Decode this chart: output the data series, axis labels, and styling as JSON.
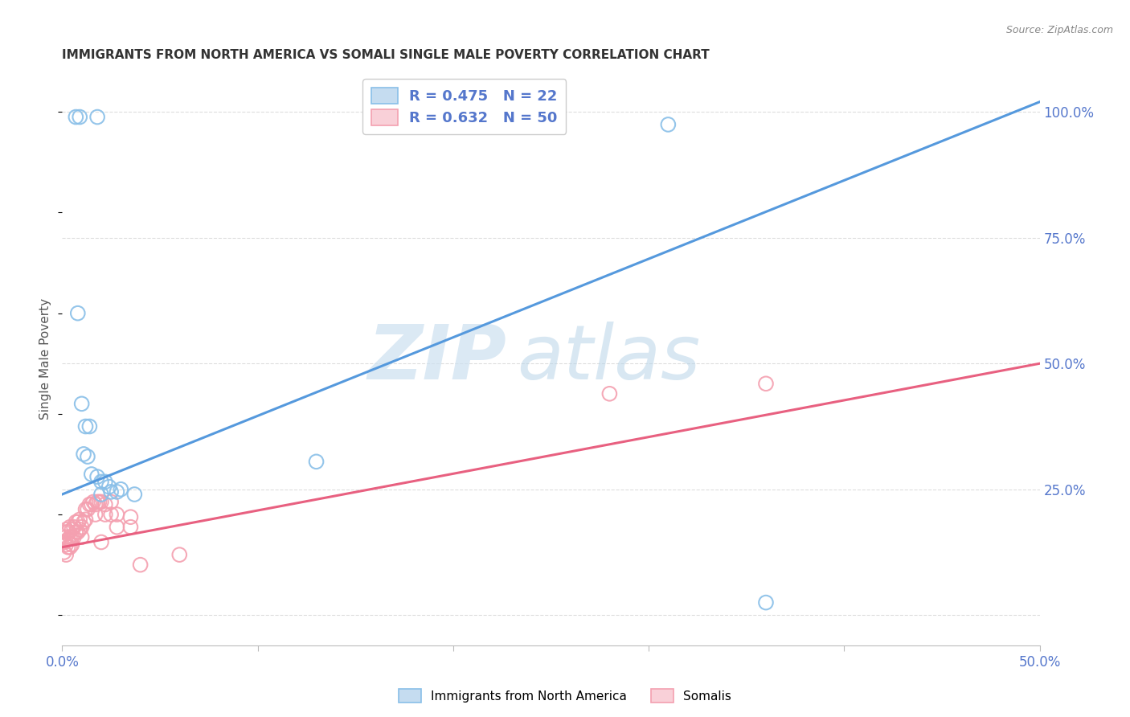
{
  "title": "IMMIGRANTS FROM NORTH AMERICA VS SOMALI SINGLE MALE POVERTY CORRELATION CHART",
  "source": "Source: ZipAtlas.com",
  "ylabel": "Single Male Poverty",
  "xmin": 0.0,
  "xmax": 0.5,
  "ymin": -0.06,
  "ymax": 1.08,
  "yticks": [
    0.0,
    0.25,
    0.5,
    0.75,
    1.0
  ],
  "ytick_labels": [
    "",
    "25.0%",
    "50.0%",
    "75.0%",
    "100.0%"
  ],
  "xtick_positions": [
    0.0,
    0.1,
    0.2,
    0.3,
    0.4,
    0.5
  ],
  "xtick_labels": [
    "0.0%",
    "",
    "",
    "",
    "",
    "50.0%"
  ],
  "blue_scatter": [
    [
      0.007,
      0.99
    ],
    [
      0.009,
      0.99
    ],
    [
      0.018,
      0.99
    ],
    [
      0.008,
      0.6
    ],
    [
      0.01,
      0.42
    ],
    [
      0.012,
      0.375
    ],
    [
      0.014,
      0.375
    ],
    [
      0.011,
      0.32
    ],
    [
      0.013,
      0.315
    ],
    [
      0.015,
      0.28
    ],
    [
      0.018,
      0.275
    ],
    [
      0.02,
      0.265
    ],
    [
      0.02,
      0.24
    ],
    [
      0.022,
      0.265
    ],
    [
      0.024,
      0.255
    ],
    [
      0.025,
      0.245
    ],
    [
      0.028,
      0.245
    ],
    [
      0.03,
      0.25
    ],
    [
      0.037,
      0.24
    ],
    [
      0.13,
      0.305
    ],
    [
      0.31,
      0.975
    ],
    [
      0.36,
      0.025
    ]
  ],
  "pink_scatter": [
    [
      0.001,
      0.165
    ],
    [
      0.001,
      0.145
    ],
    [
      0.001,
      0.125
    ],
    [
      0.002,
      0.17
    ],
    [
      0.002,
      0.155
    ],
    [
      0.002,
      0.14
    ],
    [
      0.002,
      0.12
    ],
    [
      0.003,
      0.165
    ],
    [
      0.003,
      0.15
    ],
    [
      0.003,
      0.135
    ],
    [
      0.004,
      0.175
    ],
    [
      0.004,
      0.155
    ],
    [
      0.004,
      0.135
    ],
    [
      0.005,
      0.17
    ],
    [
      0.005,
      0.155
    ],
    [
      0.005,
      0.14
    ],
    [
      0.006,
      0.175
    ],
    [
      0.006,
      0.155
    ],
    [
      0.007,
      0.185
    ],
    [
      0.007,
      0.165
    ],
    [
      0.008,
      0.185
    ],
    [
      0.008,
      0.165
    ],
    [
      0.009,
      0.19
    ],
    [
      0.009,
      0.17
    ],
    [
      0.01,
      0.175
    ],
    [
      0.01,
      0.155
    ],
    [
      0.011,
      0.185
    ],
    [
      0.012,
      0.21
    ],
    [
      0.012,
      0.19
    ],
    [
      0.013,
      0.21
    ],
    [
      0.014,
      0.22
    ],
    [
      0.015,
      0.22
    ],
    [
      0.016,
      0.225
    ],
    [
      0.017,
      0.22
    ],
    [
      0.017,
      0.2
    ],
    [
      0.018,
      0.225
    ],
    [
      0.019,
      0.225
    ],
    [
      0.02,
      0.225
    ],
    [
      0.02,
      0.145
    ],
    [
      0.022,
      0.22
    ],
    [
      0.022,
      0.2
    ],
    [
      0.025,
      0.225
    ],
    [
      0.025,
      0.2
    ],
    [
      0.028,
      0.2
    ],
    [
      0.028,
      0.175
    ],
    [
      0.035,
      0.195
    ],
    [
      0.035,
      0.175
    ],
    [
      0.04,
      0.1
    ],
    [
      0.06,
      0.12
    ],
    [
      0.28,
      0.44
    ],
    [
      0.36,
      0.46
    ]
  ],
  "blue_line": {
    "x0": 0.0,
    "y0": 0.24,
    "x1": 0.5,
    "y1": 1.02
  },
  "pink_line": {
    "x0": 0.0,
    "y0": 0.135,
    "x1": 0.5,
    "y1": 0.5
  },
  "blue_scatter_color": "#89bfe8",
  "pink_scatter_color": "#f4a0b0",
  "blue_line_color": "#5599dd",
  "pink_line_color": "#e86080",
  "legend_blue_face": "#c5dcf0",
  "legend_pink_face": "#f9d0d8",
  "legend_blue_edge": "#89bfe8",
  "legend_pink_edge": "#f4a0b0",
  "legend_text_color": "#5577cc",
  "watermark_zip_color": "#cce0f0",
  "watermark_atlas_color": "#b8d4e8",
  "axis_text_color": "#5577cc",
  "title_color": "#333333",
  "source_color": "#888888",
  "ylabel_color": "#555555",
  "grid_color": "#dddddd",
  "spine_color": "#bbbbbb",
  "background_color": "#ffffff"
}
